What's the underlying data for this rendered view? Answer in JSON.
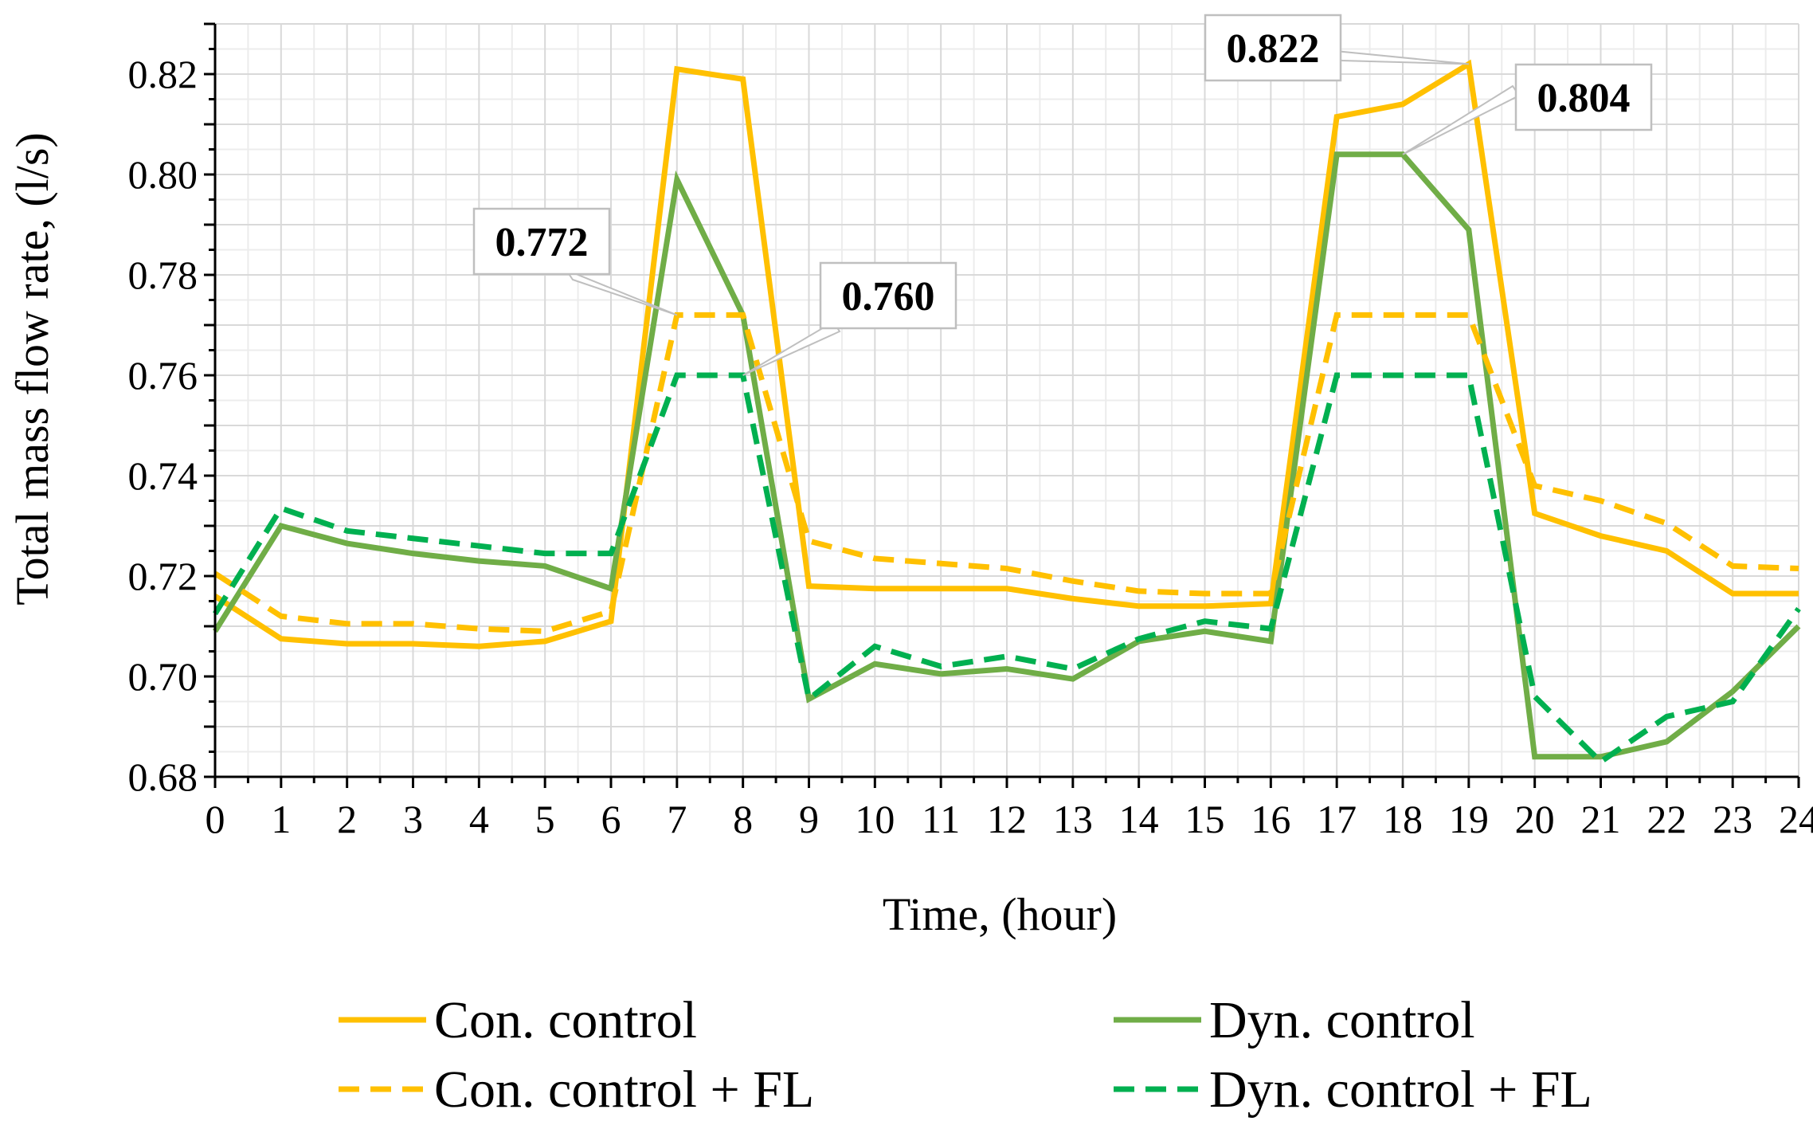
{
  "chart_data": {
    "type": "line",
    "xlabel": "Time, (hour)",
    "ylabel": "Total mass flow rate, (l/s)",
    "xlim": [
      0,
      24
    ],
    "ylim": [
      0.68,
      0.83
    ],
    "grid": true,
    "x_ticks": [
      "0",
      "1",
      "2",
      "3",
      "4",
      "5",
      "6",
      "7",
      "8",
      "9",
      "10",
      "11",
      "12",
      "13",
      "14",
      "15",
      "16",
      "17",
      "18",
      "19",
      "20",
      "21",
      "22",
      "23",
      "24"
    ],
    "y_ticks": [
      "0.68",
      "0.70",
      "0.72",
      "0.74",
      "0.76",
      "0.78",
      "0.80",
      "0.82"
    ],
    "x": [
      0,
      1,
      2,
      3,
      4,
      5,
      6,
      7,
      8,
      9,
      10,
      11,
      12,
      13,
      14,
      15,
      16,
      17,
      18,
      19,
      20,
      21,
      22,
      23,
      24
    ],
    "series": [
      {
        "name": "Con. control",
        "color": "#FFC000",
        "style": "solid",
        "values": [
          0.716,
          0.7075,
          0.7065,
          0.7065,
          0.706,
          0.707,
          0.711,
          0.821,
          0.819,
          0.718,
          0.7175,
          0.7175,
          0.7175,
          0.7155,
          0.714,
          0.714,
          0.7145,
          0.8115,
          0.814,
          0.822,
          0.7325,
          0.728,
          0.725,
          0.7165,
          0.7165
        ]
      },
      {
        "name": "Dyn. control",
        "color": "#70AD47",
        "style": "solid",
        "values": [
          0.709,
          0.73,
          0.7265,
          0.7245,
          0.723,
          0.722,
          0.7175,
          0.799,
          0.772,
          0.6955,
          0.7025,
          0.7005,
          0.7015,
          0.6995,
          0.707,
          0.709,
          0.707,
          0.804,
          0.804,
          0.789,
          0.684,
          0.684,
          0.687,
          0.697,
          0.71
        ]
      },
      {
        "name": "Con. control + FL",
        "color": "#FFC000",
        "style": "dashed",
        "values": [
          0.7205,
          0.712,
          0.7105,
          0.7105,
          0.7095,
          0.709,
          0.713,
          0.772,
          0.772,
          0.727,
          0.7235,
          0.7225,
          0.7215,
          0.719,
          0.717,
          0.7165,
          0.7165,
          0.772,
          0.772,
          0.772,
          0.738,
          0.735,
          0.7305,
          0.722,
          0.7215
        ]
      },
      {
        "name": "Dyn. control + FL",
        "color": "#00B050",
        "style": "dashed",
        "values": [
          0.7125,
          0.7335,
          0.729,
          0.7275,
          0.726,
          0.7245,
          0.7245,
          0.76,
          0.76,
          0.6955,
          0.706,
          0.702,
          0.704,
          0.7015,
          0.7075,
          0.711,
          0.7095,
          0.76,
          0.76,
          0.76,
          0.696,
          0.683,
          0.692,
          0.695,
          0.7135
        ]
      }
    ],
    "annotations": [
      {
        "text": "0.822",
        "x": 19,
        "y": 0.822
      },
      {
        "text": "0.804",
        "x": 18,
        "y": 0.804
      },
      {
        "text": "0.772",
        "x": 7,
        "y": 0.772
      },
      {
        "text": "0.760",
        "x": 8,
        "y": 0.76
      }
    ],
    "legend": [
      {
        "label": "Con. control",
        "color": "#FFC000",
        "style": "solid"
      },
      {
        "label": "Dyn. control",
        "color": "#70AD47",
        "style": "solid"
      },
      {
        "label": "Con. control + FL",
        "color": "#FFC000",
        "style": "dashed"
      },
      {
        "label": "Dyn. control + FL",
        "color": "#00B050",
        "style": "dashed"
      }
    ]
  }
}
